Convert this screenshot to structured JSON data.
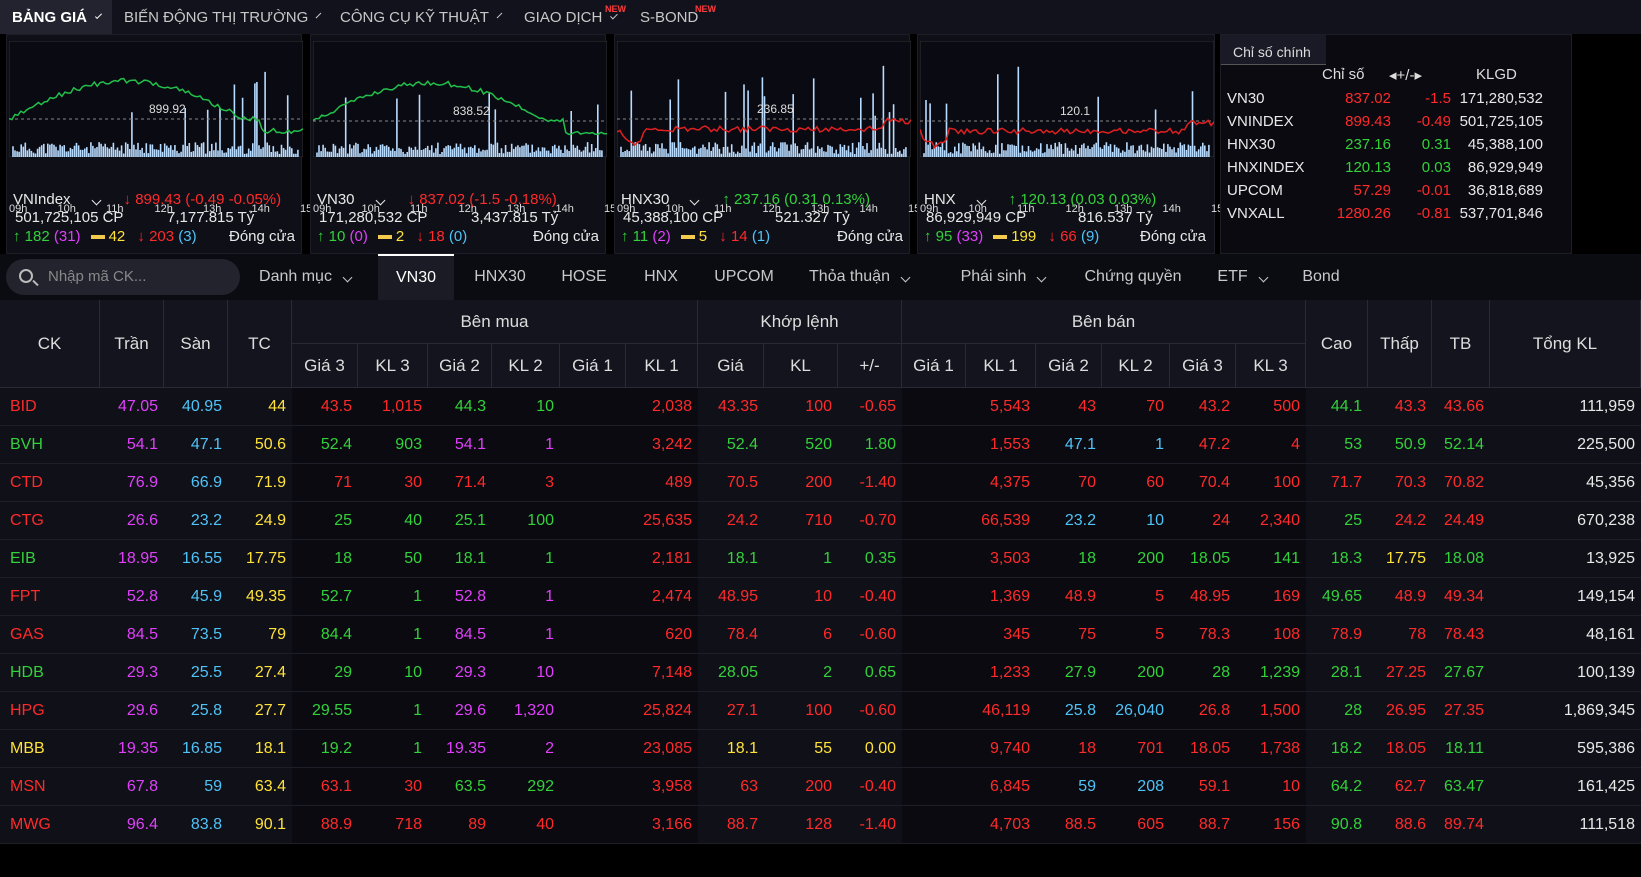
{
  "nav": [
    {
      "label": "BẢNG GIÁ",
      "active": true,
      "chev": true
    },
    {
      "label": "BIẾN ĐỘNG THỊ TRƯỜNG",
      "chev": true
    },
    {
      "label": "CÔNG CỤ KỸ THUẬT",
      "chev": true
    },
    {
      "label": "GIAO DỊCH",
      "chev": true,
      "badge": "NEW"
    },
    {
      "label": "S-BOND",
      "badge": "NEW"
    }
  ],
  "indices": [
    {
      "name": "VNIndex",
      "ref": "899.92",
      "change": "899.43 (-0.49 -0.05%)",
      "dir": "down",
      "volume": "501,725,105 CP",
      "value": "7,177.815 Tỷ",
      "up": "182",
      "ceil": "(31)",
      "flat": "42",
      "down": "203",
      "floor": "(3)",
      "status": "Đóng cửa",
      "hours": [
        "09h",
        "10h",
        "11h",
        "12h",
        "13h",
        "14h",
        "15h"
      ]
    },
    {
      "name": "VN30",
      "ref": "838.52",
      "change": "837.02 (-1.5 -0.18%)",
      "dir": "down",
      "volume": "171,280,532 CP",
      "value": "3,437.815 Tỷ",
      "up": "10",
      "ceil": "(0)",
      "flat": "2",
      "down": "18",
      "floor": "(0)",
      "status": "Đóng cửa",
      "hours": [
        "09h",
        "10h",
        "11h",
        "12h",
        "13h",
        "14h",
        "15h"
      ]
    },
    {
      "name": "HNX30",
      "ref": "236.85",
      "change": "237.16 (0.31 0.13%)",
      "dir": "up",
      "volume": "45,388,100 CP",
      "value": "521.327 Tỷ",
      "up": "11",
      "ceil": "(2)",
      "flat": "5",
      "down": "14",
      "floor": "(1)",
      "status": "Đóng cửa",
      "hours": [
        "09h",
        "10h",
        "11h",
        "12h",
        "13h",
        "14h",
        "15h"
      ]
    },
    {
      "name": "HNX",
      "ref": "120.1",
      "change": "120.13 (0.03 0.03%)",
      "dir": "up",
      "volume": "86,929,949 CP",
      "value": "816.537 Tỷ",
      "up": "95",
      "ceil": "(33)",
      "flat": "199",
      "down": "66",
      "floor": "(9)",
      "status": "Đóng cửa",
      "hours": [
        "09h",
        "10h",
        "11h",
        "12h",
        "13h",
        "14h",
        "15h"
      ]
    }
  ],
  "summary": {
    "tab": "Chỉ số chính",
    "headers": [
      "Chỉ số",
      "+/-",
      "KLGD"
    ],
    "rows": [
      {
        "name": "VN30",
        "index": "837.02",
        "change": "-1.5",
        "volume": "171,280,532",
        "color": "r"
      },
      {
        "name": "VNINDEX",
        "index": "899.43",
        "change": "-0.49",
        "volume": "501,725,105",
        "color": "r"
      },
      {
        "name": "HNX30",
        "index": "237.16",
        "change": "0.31",
        "volume": "45,388,100",
        "color": "g"
      },
      {
        "name": "HNXINDEX",
        "index": "120.13",
        "change": "0.03",
        "volume": "86,929,949",
        "color": "g"
      },
      {
        "name": "UPCOM",
        "index": "57.29",
        "change": "-0.01",
        "volume": "36,818,689",
        "color": "r"
      },
      {
        "name": "VNXALL",
        "index": "1280.26",
        "change": "-0.81",
        "volume": "537,701,846",
        "color": "r"
      }
    ]
  },
  "search": {
    "placeholder": "Nhập mã CK..."
  },
  "tabs": [
    {
      "label": "Danh mục",
      "chev": true
    },
    {
      "label": "VN30",
      "active": true
    },
    {
      "label": "HNX30"
    },
    {
      "label": "HOSE"
    },
    {
      "label": "HNX"
    },
    {
      "label": "UPCOM"
    },
    {
      "label": "Thỏa thuận",
      "chev": true
    },
    {
      "label": "Phái sinh",
      "chev": true
    },
    {
      "label": "Chứng quyền"
    },
    {
      "label": "ETF",
      "chev": true
    },
    {
      "label": "Bond"
    }
  ],
  "table": {
    "groups": [
      "Bên mua",
      "Khớp lệnh",
      "Bên bán"
    ],
    "headers": [
      "CK",
      "Trần",
      "Sàn",
      "TC",
      "Giá 3",
      "KL 3",
      "Giá 2",
      "KL 2",
      "Giá 1",
      "KL 1",
      "Giá",
      "KL",
      "+/-",
      "Giá 1",
      "KL 1",
      "Giá 2",
      "KL 2",
      "Giá 3",
      "KL 3",
      "Cao",
      "Thấp",
      "TB",
      "Tổng KL"
    ],
    "rows": [
      {
        "v": [
          "BID",
          "47.05",
          "40.95",
          "44",
          "43.5",
          "1,015",
          "44.3",
          "10",
          "",
          "2,038",
          "43.35",
          "100",
          "-0.65",
          "",
          "5,543",
          "43",
          "70",
          "43.2",
          "500",
          "44.1",
          "43.3",
          "43.66",
          "111,959"
        ],
        "c": [
          "r",
          "f",
          "c",
          "y",
          "r",
          "r",
          "g",
          "g",
          "r",
          "r",
          "r",
          "r",
          "r",
          "r",
          "r",
          "r",
          "r",
          "r",
          "r",
          "g",
          "r",
          "r",
          "w"
        ]
      },
      {
        "v": [
          "BVH",
          "54.1",
          "47.1",
          "50.6",
          "52.4",
          "903",
          "54.1",
          "1",
          "",
          "3,242",
          "52.4",
          "520",
          "1.80",
          "",
          "1,553",
          "47.1",
          "1",
          "47.2",
          "4",
          "53",
          "50.9",
          "52.14",
          "225,500"
        ],
        "c": [
          "g",
          "f",
          "c",
          "y",
          "g",
          "g",
          "f",
          "f",
          "r",
          "r",
          "g",
          "g",
          "g",
          "r",
          "r",
          "c",
          "c",
          "r",
          "r",
          "g",
          "g",
          "g",
          "w"
        ]
      },
      {
        "v": [
          "CTD",
          "76.9",
          "66.9",
          "71.9",
          "71",
          "30",
          "71.4",
          "3",
          "",
          "489",
          "70.5",
          "200",
          "-1.40",
          "",
          "4,375",
          "70",
          "60",
          "70.4",
          "100",
          "71.7",
          "70.3",
          "70.82",
          "45,356"
        ],
        "c": [
          "r",
          "f",
          "c",
          "y",
          "r",
          "r",
          "r",
          "r",
          "r",
          "r",
          "r",
          "r",
          "r",
          "r",
          "r",
          "r",
          "r",
          "r",
          "r",
          "r",
          "r",
          "r",
          "w"
        ]
      },
      {
        "v": [
          "CTG",
          "26.6",
          "23.2",
          "24.9",
          "25",
          "40",
          "25.1",
          "100",
          "",
          "25,635",
          "24.2",
          "710",
          "-0.70",
          "",
          "66,539",
          "23.2",
          "10",
          "24",
          "2,340",
          "25",
          "24.2",
          "24.49",
          "670,238"
        ],
        "c": [
          "r",
          "f",
          "c",
          "y",
          "g",
          "g",
          "g",
          "g",
          "r",
          "r",
          "r",
          "r",
          "r",
          "r",
          "r",
          "c",
          "c",
          "r",
          "r",
          "g",
          "r",
          "r",
          "w"
        ]
      },
      {
        "v": [
          "EIB",
          "18.95",
          "16.55",
          "17.75",
          "18",
          "50",
          "18.1",
          "1",
          "",
          "2,181",
          "18.1",
          "1",
          "0.35",
          "",
          "3,503",
          "18",
          "200",
          "18.05",
          "141",
          "18.3",
          "17.75",
          "18.08",
          "13,925"
        ],
        "c": [
          "g",
          "f",
          "c",
          "y",
          "g",
          "g",
          "g",
          "g",
          "r",
          "r",
          "g",
          "g",
          "g",
          "r",
          "r",
          "g",
          "g",
          "g",
          "g",
          "g",
          "y",
          "g",
          "w"
        ]
      },
      {
        "v": [
          "FPT",
          "52.8",
          "45.9",
          "49.35",
          "52.7",
          "1",
          "52.8",
          "1",
          "",
          "2,474",
          "48.95",
          "10",
          "-0.40",
          "",
          "1,369",
          "48.9",
          "5",
          "48.95",
          "169",
          "49.65",
          "48.9",
          "49.34",
          "149,154"
        ],
        "c": [
          "r",
          "f",
          "c",
          "y",
          "g",
          "g",
          "f",
          "f",
          "r",
          "r",
          "r",
          "r",
          "r",
          "r",
          "r",
          "r",
          "r",
          "r",
          "r",
          "g",
          "r",
          "r",
          "w"
        ]
      },
      {
        "v": [
          "GAS",
          "84.5",
          "73.5",
          "79",
          "84.4",
          "1",
          "84.5",
          "1",
          "",
          "620",
          "78.4",
          "6",
          "-0.60",
          "",
          "345",
          "75",
          "5",
          "78.3",
          "108",
          "78.9",
          "78",
          "78.43",
          "48,161"
        ],
        "c": [
          "r",
          "f",
          "c",
          "y",
          "g",
          "g",
          "f",
          "f",
          "r",
          "r",
          "r",
          "r",
          "r",
          "r",
          "r",
          "r",
          "r",
          "r",
          "r",
          "r",
          "r",
          "r",
          "w"
        ]
      },
      {
        "v": [
          "HDB",
          "29.3",
          "25.5",
          "27.4",
          "29",
          "10",
          "29.3",
          "10",
          "",
          "7,148",
          "28.05",
          "2",
          "0.65",
          "",
          "1,233",
          "27.9",
          "200",
          "28",
          "1,239",
          "28.1",
          "27.25",
          "27.67",
          "100,139"
        ],
        "c": [
          "g",
          "f",
          "c",
          "y",
          "g",
          "g",
          "f",
          "f",
          "r",
          "r",
          "g",
          "g",
          "g",
          "r",
          "r",
          "g",
          "g",
          "g",
          "g",
          "g",
          "r",
          "g",
          "w"
        ]
      },
      {
        "v": [
          "HPG",
          "29.6",
          "25.8",
          "27.7",
          "29.55",
          "1",
          "29.6",
          "1,320",
          "",
          "25,824",
          "27.1",
          "100",
          "-0.60",
          "",
          "46,119",
          "25.8",
          "26,040",
          "26.8",
          "1,500",
          "28",
          "26.95",
          "27.35",
          "1,869,345"
        ],
        "c": [
          "r",
          "f",
          "c",
          "y",
          "g",
          "g",
          "f",
          "f",
          "r",
          "r",
          "r",
          "r",
          "r",
          "r",
          "r",
          "c",
          "c",
          "r",
          "r",
          "g",
          "r",
          "r",
          "w"
        ]
      },
      {
        "v": [
          "MBB",
          "19.35",
          "16.85",
          "18.1",
          "19.2",
          "1",
          "19.35",
          "2",
          "",
          "23,085",
          "18.1",
          "55",
          "0.00",
          "",
          "9,740",
          "18",
          "701",
          "18.05",
          "1,738",
          "18.2",
          "18.05",
          "18.11",
          "595,386"
        ],
        "c": [
          "y",
          "f",
          "c",
          "y",
          "g",
          "g",
          "f",
          "f",
          "r",
          "r",
          "y",
          "y",
          "y",
          "r",
          "r",
          "r",
          "r",
          "r",
          "r",
          "g",
          "r",
          "g",
          "w"
        ]
      },
      {
        "v": [
          "MSN",
          "67.8",
          "59",
          "63.4",
          "63.1",
          "30",
          "63.5",
          "292",
          "",
          "3,958",
          "63",
          "200",
          "-0.40",
          "",
          "6,845",
          "59",
          "208",
          "59.1",
          "10",
          "64.2",
          "62.7",
          "63.47",
          "161,425"
        ],
        "c": [
          "r",
          "f",
          "c",
          "y",
          "r",
          "r",
          "g",
          "g",
          "r",
          "r",
          "r",
          "r",
          "r",
          "r",
          "r",
          "c",
          "c",
          "r",
          "r",
          "g",
          "r",
          "g",
          "w"
        ]
      },
      {
        "v": [
          "MWG",
          "96.4",
          "83.8",
          "90.1",
          "88.9",
          "718",
          "89",
          "40",
          "",
          "3,166",
          "88.7",
          "128",
          "-1.40",
          "",
          "4,703",
          "88.5",
          "605",
          "88.7",
          "156",
          "90.8",
          "88.6",
          "89.74",
          "111,518"
        ],
        "c": [
          "r",
          "f",
          "c",
          "y",
          "r",
          "r",
          "r",
          "r",
          "r",
          "r",
          "r",
          "r",
          "r",
          "r",
          "r",
          "r",
          "r",
          "r",
          "r",
          "g",
          "r",
          "r",
          "w"
        ]
      }
    ]
  }
}
